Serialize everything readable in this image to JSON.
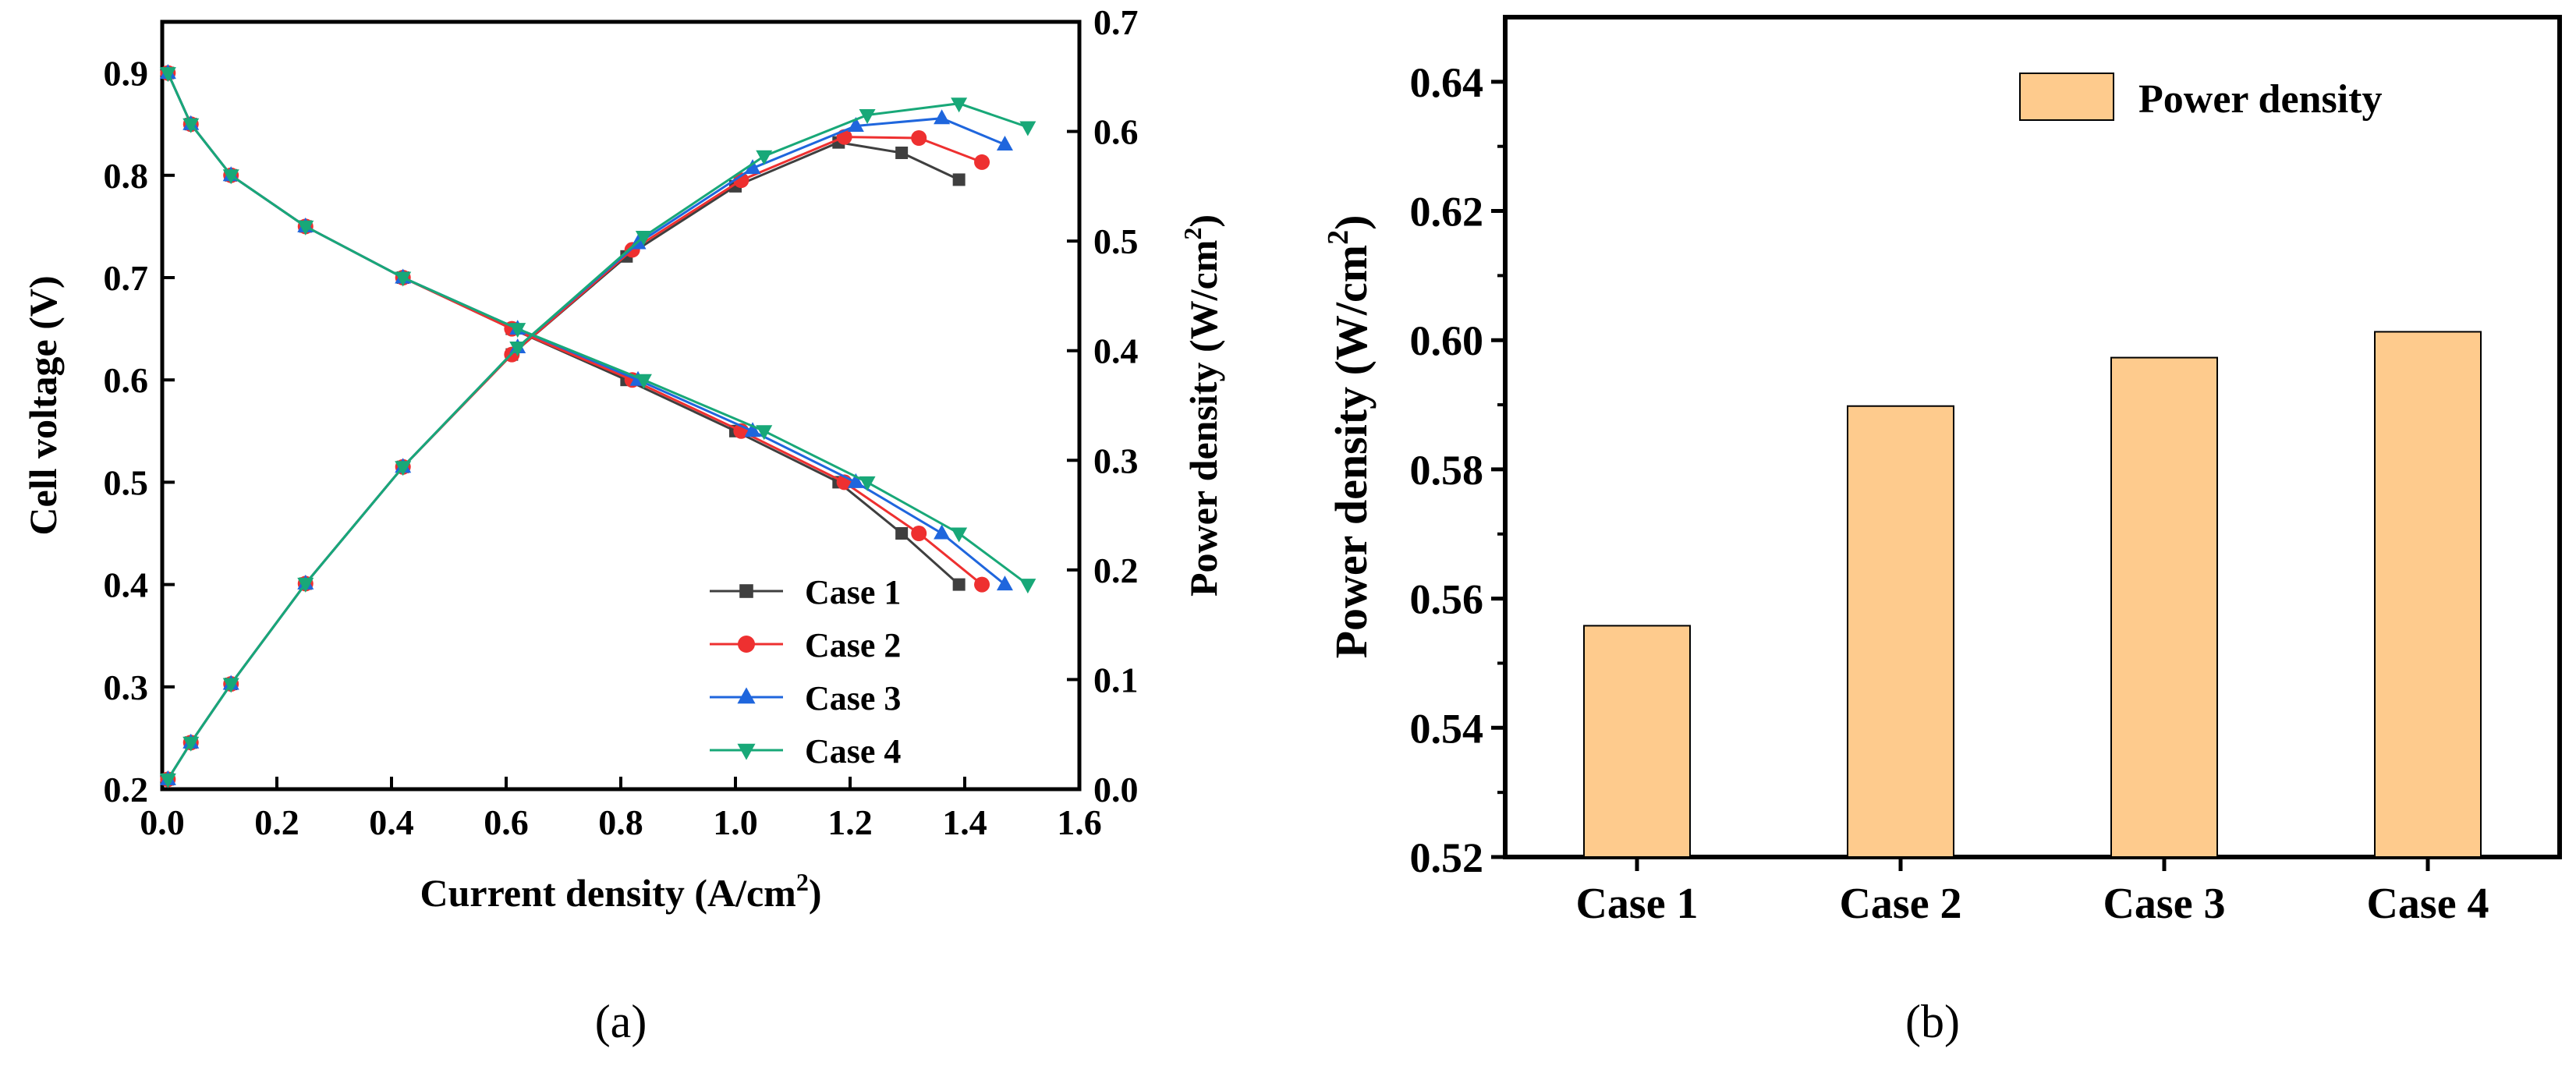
{
  "chart_data": [
    {
      "panel": "(a)",
      "type": "line",
      "xlabel_main": "Current density (A/cm",
      "xlabel_sup": "2",
      "xlabel_end": ")",
      "ylabel_left": "Cell voltage (V)",
      "ylabel_right_main": "Power density (W/cm",
      "ylabel_right_sup": "2",
      "ylabel_right_end": ")",
      "xlim": [
        0.0,
        1.6
      ],
      "ylim_left": [
        0.2,
        0.95
      ],
      "ylim_right": [
        0.0,
        0.7
      ],
      "xticks": [
        "0.0",
        "0.2",
        "0.4",
        "0.6",
        "0.8",
        "1.0",
        "1.2",
        "1.4",
        "1.6"
      ],
      "yticks_left": [
        "0.2",
        "0.3",
        "0.4",
        "0.5",
        "0.6",
        "0.7",
        "0.8",
        "0.9"
      ],
      "yticks_right": [
        "0.0",
        "0.1",
        "0.2",
        "0.3",
        "0.4",
        "0.5",
        "0.6",
        "0.7"
      ],
      "grid": false,
      "legend_position": "bottom-right",
      "series": [
        {
          "name": "Case 1",
          "color": "#3f3f3f",
          "marker": "square",
          "voltage": {
            "x": [
              0.01,
              0.05,
              0.12,
              0.25,
              0.42,
              0.61,
              0.81,
              1.0,
              1.18,
              1.29,
              1.39
            ],
            "y": [
              0.9,
              0.85,
              0.8,
              0.75,
              0.7,
              0.65,
              0.6,
              0.55,
              0.5,
              0.45,
              0.4
            ]
          },
          "power": {
            "x": [
              0.01,
              0.05,
              0.12,
              0.25,
              0.42,
              0.61,
              0.81,
              1.0,
              1.18,
              1.29,
              1.39
            ],
            "y": [
              0.009,
              0.0425,
              0.096,
              0.1875,
              0.294,
              0.3965,
              0.486,
              0.55,
              0.59,
              0.5805,
              0.556
            ]
          }
        },
        {
          "name": "Case 2",
          "color": "#ee3030",
          "marker": "circle",
          "voltage": {
            "x": [
              0.01,
              0.05,
              0.12,
              0.25,
              0.42,
              0.61,
              0.82,
              1.01,
              1.19,
              1.32,
              1.43
            ],
            "y": [
              0.9,
              0.85,
              0.8,
              0.75,
              0.7,
              0.65,
              0.6,
              0.55,
              0.5,
              0.45,
              0.4
            ]
          },
          "power": {
            "x": [
              0.01,
              0.05,
              0.12,
              0.25,
              0.42,
              0.61,
              0.82,
              1.01,
              1.19,
              1.32,
              1.43
            ],
            "y": [
              0.009,
              0.0425,
              0.096,
              0.1875,
              0.294,
              0.3965,
              0.492,
              0.5555,
              0.595,
              0.594,
              0.572
            ]
          }
        },
        {
          "name": "Case 3",
          "color": "#1f66dd",
          "marker": "triangle-up",
          "voltage": {
            "x": [
              0.01,
              0.05,
              0.12,
              0.25,
              0.42,
              0.62,
              0.83,
              1.03,
              1.21,
              1.36,
              1.47
            ],
            "y": [
              0.9,
              0.85,
              0.8,
              0.75,
              0.7,
              0.65,
              0.6,
              0.55,
              0.5,
              0.45,
              0.4
            ]
          },
          "power": {
            "x": [
              0.01,
              0.05,
              0.12,
              0.25,
              0.42,
              0.62,
              0.83,
              1.03,
              1.21,
              1.36,
              1.47
            ],
            "y": [
              0.009,
              0.0425,
              0.096,
              0.1875,
              0.294,
              0.403,
              0.498,
              0.5665,
              0.605,
              0.612,
              0.588
            ]
          }
        },
        {
          "name": "Case 4",
          "color": "#18a878",
          "marker": "triangle-down",
          "voltage": {
            "x": [
              0.01,
              0.05,
              0.12,
              0.25,
              0.42,
              0.62,
              0.84,
              1.05,
              1.23,
              1.39,
              1.51
            ],
            "y": [
              0.9,
              0.85,
              0.8,
              0.75,
              0.7,
              0.65,
              0.6,
              0.55,
              0.5,
              0.45,
              0.4
            ]
          },
          "power": {
            "x": [
              0.01,
              0.05,
              0.12,
              0.25,
              0.42,
              0.62,
              0.84,
              1.05,
              1.23,
              1.39,
              1.51
            ],
            "y": [
              0.009,
              0.0425,
              0.096,
              0.1875,
              0.294,
              0.403,
              0.504,
              0.5775,
              0.615,
              0.6255,
              0.604
            ]
          }
        }
      ]
    },
    {
      "panel": "(b)",
      "type": "bar",
      "categories": [
        "Case 1",
        "Case 2",
        "Case 3",
        "Case 4"
      ],
      "values": [
        0.5558,
        0.5898,
        0.5973,
        0.6013
      ],
      "ylabel_main": "Power density (W/cm",
      "ylabel_sup": "2",
      "ylabel_end": ")",
      "ylim": [
        0.52,
        0.65
      ],
      "yticks": [
        "0.52",
        "0.54",
        "0.56",
        "0.58",
        "0.60",
        "0.62",
        "0.64"
      ],
      "legend": "Power density",
      "legend_position": "top-right",
      "bar_color": "#fecb8d",
      "grid": false
    }
  ],
  "captions": {
    "a": "(a)",
    "b": "(b)"
  }
}
